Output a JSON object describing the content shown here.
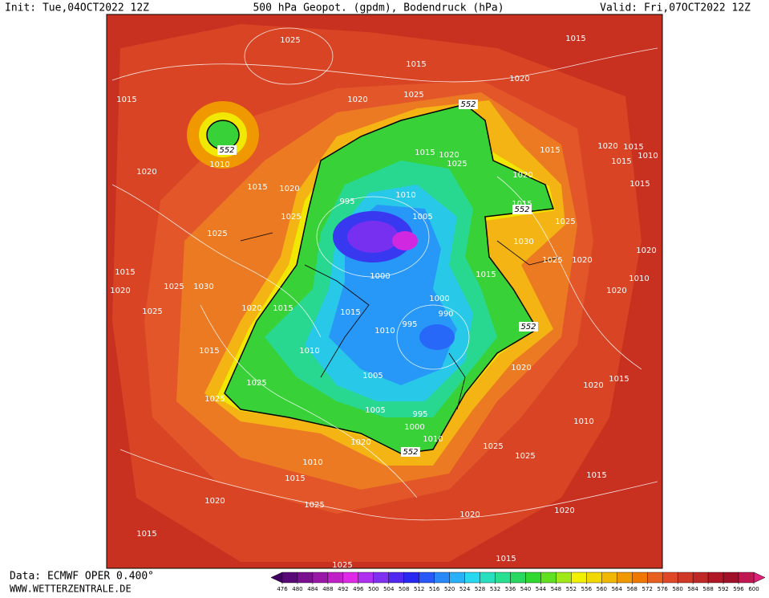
{
  "header": {
    "init": "Init: Tue,04OCT2022 12Z",
    "title": "500 hPa Geopot. (gpdm), Bodendruck (hPa)",
    "valid": "Valid: Fri,07OCT2022 12Z"
  },
  "footer": {
    "source": "Data: ECMWF OPER 0.400°",
    "website": "WWW.WETTERZENTRALE.DE"
  },
  "isobar_labels": [
    "1025",
    "1015",
    "1015",
    "1020",
    "1015",
    "1020",
    "1025",
    "552",
    "552",
    "1010",
    "1015",
    "1020",
    "1025",
    "1015",
    "1020",
    "1015",
    "1015",
    "1010",
    "1020",
    "1015",
    "1020",
    "1020",
    "995",
    "1010",
    "1015",
    "552",
    "1025",
    "1005",
    "1025",
    "1015",
    "1025",
    "1030",
    "1020",
    "1025",
    "1020",
    "1015",
    "1000",
    "1015",
    "1010",
    "1020",
    "1025",
    "1030",
    "1020",
    "1000",
    "1020",
    "1015",
    "1015",
    "990",
    "1025",
    "995",
    "1010",
    "552",
    "1015",
    "1010",
    "1005",
    "1020",
    "1025",
    "1015",
    "1020",
    "1025",
    "1005",
    "995",
    "1010",
    "1000",
    "1010",
    "1020",
    "1025",
    "552",
    "1025",
    "1010",
    "1015",
    "1015",
    "1020",
    "1025",
    "1020",
    "1020",
    "1015",
    "1015",
    "1025"
  ],
  "colorbar": {
    "ticks": [
      476,
      480,
      484,
      488,
      492,
      496,
      500,
      504,
      508,
      512,
      516,
      520,
      524,
      528,
      532,
      536,
      540,
      544,
      548,
      552,
      556,
      560,
      564,
      568,
      572,
      576,
      580,
      584,
      588,
      592,
      596,
      600
    ],
    "colors": [
      "#5a0a78",
      "#7a1090",
      "#9a18a8",
      "#c020c8",
      "#e028e8",
      "#b030f0",
      "#8030f0",
      "#5028f0",
      "#2828f0",
      "#2858f8",
      "#2888f8",
      "#28b0f8",
      "#28d8f0",
      "#28e0c0",
      "#28e090",
      "#28d860",
      "#30d830",
      "#60e020",
      "#a0e818",
      "#f0f000",
      "#f0d800",
      "#f0b800",
      "#f09800",
      "#f07800",
      "#e86020",
      "#e04828",
      "#d03828",
      "#c02828",
      "#b01828",
      "#a01028",
      "#c01850"
    ],
    "under_color": "#400060",
    "over_color": "#e0207a"
  }
}
